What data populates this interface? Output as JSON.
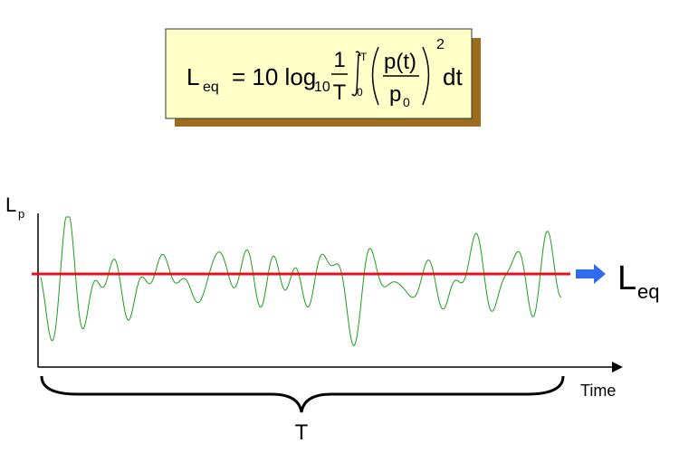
{
  "formula": {
    "lhs": "L",
    "lhs_sub": "eq",
    "equals": "= 10 log",
    "log_base": "10",
    "frac_num": "1",
    "frac_den": "T",
    "int_upper": "T",
    "int_lower": "0",
    "inner_num": "p(t)",
    "inner_den_base": "p",
    "inner_den_sub": "0",
    "exponent": "2",
    "differential": "dt"
  },
  "axes": {
    "y_label": "L",
    "y_label_sub": "p",
    "x_label": "Time"
  },
  "brace_label": "T",
  "level_label": {
    "base": "L",
    "sub": "eq"
  }
}
